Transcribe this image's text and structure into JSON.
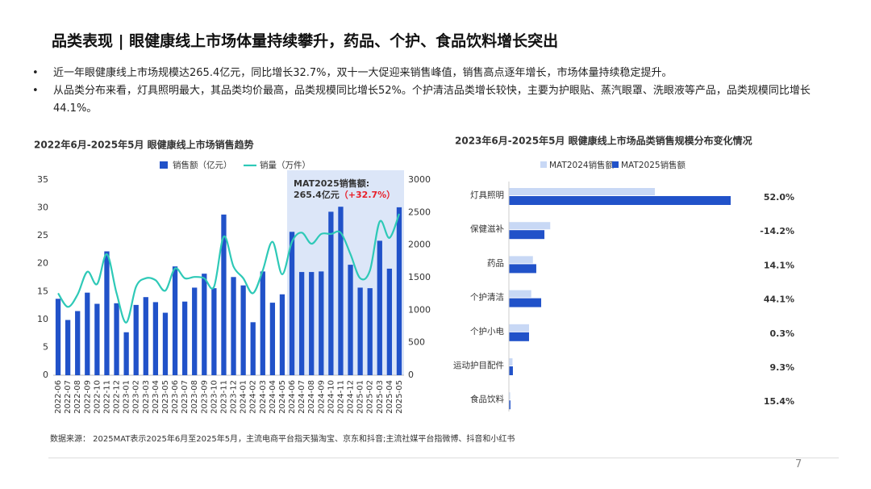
{
  "header": {
    "title": "品类表现 | 眼健康线上市场体量持续攀升，药品、个护、食品饮料增长突出"
  },
  "bullets": [
    "近一年眼健康线上市场规模达265.4亿元，同比增长32.7%，双十一大促迎来销售峰值，销售高点逐年增长，市场体量持续稳定提升。",
    "从品类分布来看，灯具照明最大，其品类均价最高，品类规模同比增长52%。个护清洁品类增长较快，主要为护眼贴、蒸汽眼罩、洗眼液等产品，品类规模同比增长44.1%。"
  ],
  "source": "数据来源： 2025MAT表示2025年6月至2025年5月，主流电商平台指天猫淘宝、京东和抖音;主流社媒平台指微博、抖音和小红书",
  "page_number": "7",
  "chart_data": [
    {
      "type": "bar_line",
      "title": "2022年6月-2025年5月 眼健康线上市场销售趋势",
      "categories": [
        "2022-06",
        "2022-07",
        "2022-08",
        "2022-09",
        "2022-10",
        "2022-11",
        "2022-12",
        "2023-01",
        "2023-02",
        "2023-03",
        "2023-04",
        "2023-05",
        "2023-06",
        "2023-07",
        "2023-08",
        "2023-09",
        "2023-10",
        "2023-11",
        "2023-12",
        "2024-01",
        "2024-02",
        "2024-03",
        "2024-04",
        "2024-05",
        "2024-06",
        "2024-07",
        "2024-08",
        "2024-09",
        "2024-10",
        "2024-11",
        "2024-12",
        "2025-01",
        "2025-02",
        "2025-03",
        "2025-04",
        "2025-05"
      ],
      "series": [
        {
          "name": "销售额（亿元）",
          "color": "#2152c9",
          "mark": "bar",
          "values": [
            13.7,
            9.9,
            11.5,
            14.8,
            12.8,
            22.2,
            12.9,
            7.7,
            12.6,
            14.0,
            13.1,
            11.2,
            19.5,
            13.2,
            15.7,
            18.2,
            15.6,
            28.8,
            17.6,
            16.1,
            9.5,
            18.6,
            13.0,
            14.5,
            25.7,
            18.5,
            18.5,
            18.6,
            29.3,
            30.2,
            19.8,
            15.7,
            15.6,
            24.1,
            19.1,
            30.1
          ]
        },
        {
          "name": "销量（万件）",
          "color": "#2ec9b7",
          "mark": "line",
          "axis": "y2",
          "values": [
            1260,
            1050,
            1240,
            1590,
            1400,
            1860,
            1260,
            810,
            1360,
            1490,
            1460,
            1300,
            1640,
            1490,
            1510,
            1490,
            1360,
            2130,
            1670,
            1490,
            1260,
            1610,
            2050,
            1550,
            2050,
            2190,
            2020,
            2170,
            2170,
            2190,
            1860,
            1490,
            1610,
            2360,
            2110,
            2480
          ]
        }
      ],
      "ylim": [
        0,
        35
      ],
      "yticks": [
        0,
        5,
        10,
        15,
        20,
        25,
        30,
        35
      ],
      "y2lim": [
        0,
        3000
      ],
      "y2ticks": [
        0,
        500,
        1000,
        1500,
        2000,
        2500,
        3000
      ],
      "highlight": [
        "2024-06",
        "2025-05"
      ],
      "highlight_color": "#dce6f8",
      "annotations": [
        "MAT2025销售额:",
        "265.4亿元",
        "（+32.7%）"
      ]
    },
    {
      "type": "horizontal_bar",
      "title": "2023年6月-2025年5月 眼健康线上市场品类销售规模分布变化情况",
      "categories": [
        "灯具照明",
        "保健滋补",
        "药品",
        "个护清洁",
        "个护小电",
        "运动护目配件",
        "食品饮料"
      ],
      "series": [
        {
          "name": "MAT2024销售额",
          "color": "#c8d8f5",
          "values": [
            113.0,
            32.0,
            18.6,
            17.3,
            15.6,
            2.8,
            1.0
          ]
        },
        {
          "name": "MAT2025销售额",
          "color": "#2152c9",
          "values": [
            171.7,
            27.5,
            21.2,
            25.0,
            15.6,
            3.1,
            1.2
          ]
        }
      ],
      "growth": {
        "values": [
          52.0,
          -14.2,
          14.1,
          44.1,
          0.3,
          9.3,
          15.4
        ],
        "value_labels": [
          "52.0%",
          "-14.2%",
          "14.1%",
          "44.1%",
          "0.3%",
          "9.3%",
          "15.4%"
        ],
        "colors": [
          "#e8202a",
          "#111111",
          "#e8202a",
          "#e8202a",
          "#111111",
          "#111111",
          "#e8202a"
        ]
      }
    }
  ]
}
